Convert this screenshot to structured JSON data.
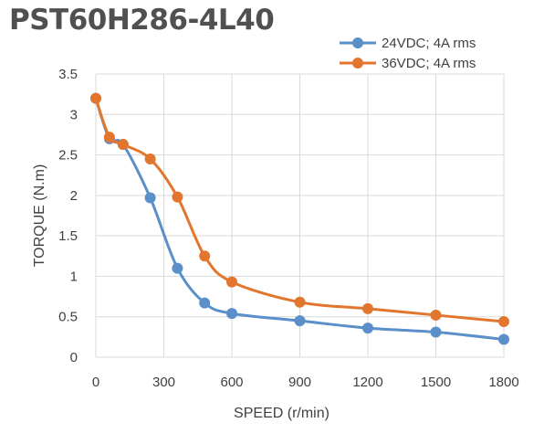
{
  "chart_data": {
    "type": "line",
    "title": "PST60H286-4L40",
    "xlabel": "SPEED (r/min)",
    "ylabel": "TORQUE (N.m)",
    "xlim": [
      0,
      1800
    ],
    "ylim": [
      0,
      3.5
    ],
    "x_ticks": [
      "0",
      "300",
      "600",
      "900",
      "1200",
      "1500",
      "1800"
    ],
    "y_ticks": [
      "0",
      "0.5",
      "1",
      "1.5",
      "2",
      "2.5",
      "3",
      "3.5"
    ],
    "grid": "vertical and horizontal",
    "legend_position": "top-right",
    "series": [
      {
        "name": "24VDC; 4A rms",
        "color": "#5B8FC9",
        "x": [
          0,
          60,
          120,
          240,
          360,
          480,
          600,
          900,
          1200,
          1500,
          1800
        ],
        "y": [
          3.2,
          2.7,
          2.63,
          1.97,
          1.1,
          0.67,
          0.54,
          0.45,
          0.36,
          0.31,
          0.22
        ]
      },
      {
        "name": "36VDC; 4A rms",
        "color": "#E2762F",
        "x": [
          0,
          60,
          120,
          240,
          360,
          480,
          600,
          900,
          1200,
          1500,
          1800
        ],
        "y": [
          3.2,
          2.72,
          2.63,
          2.45,
          1.98,
          1.25,
          0.93,
          0.68,
          0.6,
          0.52,
          0.44
        ]
      }
    ]
  }
}
